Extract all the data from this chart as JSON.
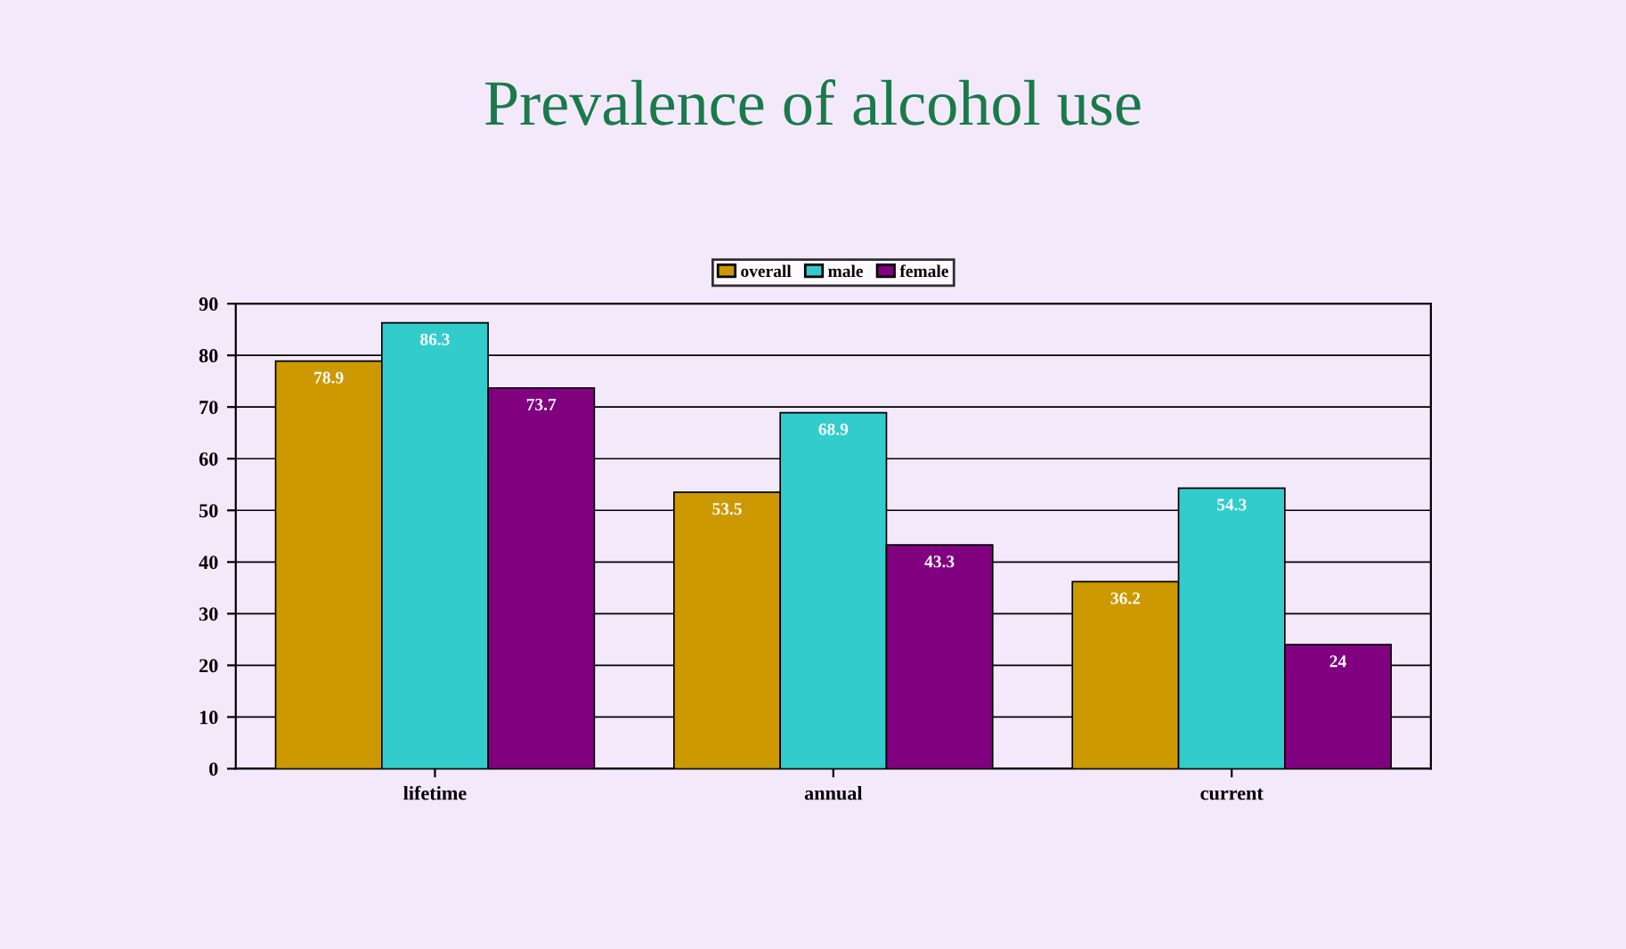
{
  "chart_data": {
    "type": "bar",
    "title": "Prevalence of alcohol use",
    "categories": [
      "lifetime",
      "annual",
      "current"
    ],
    "series": [
      {
        "name": "overall",
        "color": "#cc9900",
        "values": [
          78.9,
          53.5,
          36.2
        ]
      },
      {
        "name": "male",
        "color": "#33cccc",
        "values": [
          86.3,
          68.9,
          54.3
        ]
      },
      {
        "name": "female",
        "color": "#800080",
        "values": [
          73.7,
          43.3,
          24
        ]
      }
    ],
    "ylim": [
      0,
      90
    ],
    "yticks": [
      0,
      10,
      20,
      30,
      40,
      50,
      60,
      70,
      80,
      90
    ],
    "grid": "y",
    "legend": "top",
    "data_labels": true
  }
}
